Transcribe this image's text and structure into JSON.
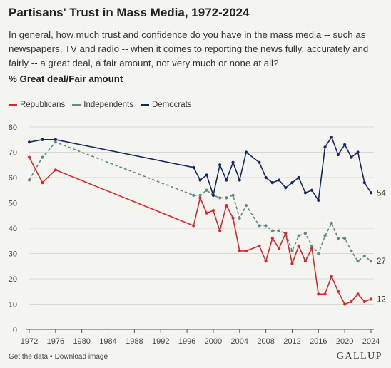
{
  "header": {
    "title": "Partisans' Trust in Mass Media, 1972-2024",
    "subtitle": "In general, how much trust and confidence do you have in the mass media -- such as newspapers, TV and radio -- when it comes to reporting the news fully, accurately and fairly -- a great deal, a fair amount, not very much or none at all?",
    "measure": "% Great deal/Fair amount"
  },
  "footer": {
    "get_data": "Get the data",
    "separator": "•",
    "download": "Download image",
    "brand": "GALLUP"
  },
  "colors": {
    "background": "#f4f4f0",
    "republicans": "#d9262e",
    "independents": "#5e8c7c",
    "democrats": "#16295c",
    "grid": "#d8d8d4",
    "axis": "#555555"
  },
  "chart_data": {
    "type": "line",
    "title": "Partisans' Trust in Mass Media, 1972-2024",
    "xlabel": "",
    "ylabel": "",
    "xlim": [
      1972,
      2024
    ],
    "ylim": [
      0,
      80
    ],
    "x_ticks": [
      1972,
      1976,
      1980,
      1984,
      1988,
      1992,
      1996,
      2000,
      2004,
      2008,
      2012,
      2016,
      2020,
      2024
    ],
    "y_ticks": [
      0,
      10,
      20,
      30,
      40,
      50,
      60,
      70,
      80
    ],
    "grid": true,
    "legend_position": "top-left",
    "series": [
      {
        "name": "Republicans",
        "style": "solid",
        "color": "#d9262e",
        "end_label": "12",
        "points": [
          [
            1972,
            68
          ],
          [
            1974,
            58
          ],
          [
            1976,
            63
          ],
          [
            1997,
            41
          ],
          [
            1998,
            52
          ],
          [
            1999,
            46
          ],
          [
            2000,
            47
          ],
          [
            2001,
            39
          ],
          [
            2002,
            49
          ],
          [
            2003,
            44
          ],
          [
            2004,
            31
          ],
          [
            2005,
            31
          ],
          [
            2007,
            33
          ],
          [
            2008,
            27
          ],
          [
            2009,
            36
          ],
          [
            2010,
            32
          ],
          [
            2011,
            38
          ],
          [
            2012,
            26
          ],
          [
            2013,
            33
          ],
          [
            2014,
            27
          ],
          [
            2015,
            32
          ],
          [
            2016,
            14
          ],
          [
            2017,
            14
          ],
          [
            2018,
            21
          ],
          [
            2019,
            15
          ],
          [
            2020,
            10
          ],
          [
            2021,
            11
          ],
          [
            2022,
            14
          ],
          [
            2023,
            11
          ],
          [
            2024,
            12
          ]
        ]
      },
      {
        "name": "Independents",
        "style": "dashed",
        "color": "#5e8c7c",
        "end_label": "27",
        "points": [
          [
            1972,
            59
          ],
          [
            1974,
            68
          ],
          [
            1976,
            74
          ],
          [
            1997,
            53
          ],
          [
            1998,
            53
          ],
          [
            1999,
            55
          ],
          [
            2000,
            53
          ],
          [
            2001,
            52
          ],
          [
            2002,
            52
          ],
          [
            2003,
            53
          ],
          [
            2004,
            44
          ],
          [
            2005,
            49
          ],
          [
            2007,
            41
          ],
          [
            2008,
            41
          ],
          [
            2009,
            39
          ],
          [
            2010,
            39
          ],
          [
            2011,
            38
          ],
          [
            2012,
            31
          ],
          [
            2013,
            37
          ],
          [
            2014,
            38
          ],
          [
            2015,
            33
          ],
          [
            2016,
            30
          ],
          [
            2017,
            37
          ],
          [
            2018,
            42
          ],
          [
            2019,
            36
          ],
          [
            2020,
            36
          ],
          [
            2021,
            31
          ],
          [
            2022,
            27
          ],
          [
            2023,
            29
          ],
          [
            2024,
            27
          ]
        ]
      },
      {
        "name": "Democrats",
        "style": "solid",
        "color": "#16295c",
        "end_label": "54",
        "points": [
          [
            1972,
            74
          ],
          [
            1974,
            75
          ],
          [
            1976,
            75
          ],
          [
            1997,
            64
          ],
          [
            1998,
            59
          ],
          [
            1999,
            61
          ],
          [
            2000,
            53
          ],
          [
            2001,
            65
          ],
          [
            2002,
            59
          ],
          [
            2003,
            66
          ],
          [
            2004,
            59
          ],
          [
            2005,
            70
          ],
          [
            2007,
            66
          ],
          [
            2008,
            60
          ],
          [
            2009,
            58
          ],
          [
            2010,
            59
          ],
          [
            2011,
            56
          ],
          [
            2012,
            58
          ],
          [
            2013,
            60
          ],
          [
            2014,
            54
          ],
          [
            2015,
            55
          ],
          [
            2016,
            51
          ],
          [
            2017,
            72
          ],
          [
            2018,
            76
          ],
          [
            2019,
            69
          ],
          [
            2020,
            73
          ],
          [
            2021,
            68
          ],
          [
            2022,
            70
          ],
          [
            2023,
            58
          ],
          [
            2024,
            54
          ]
        ]
      }
    ]
  }
}
